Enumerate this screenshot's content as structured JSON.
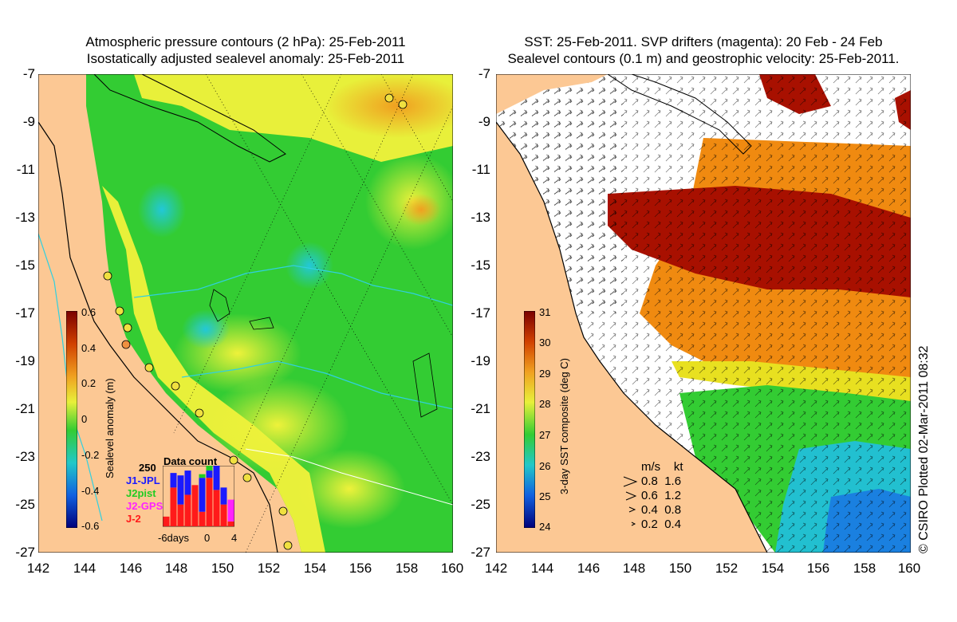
{
  "left_panel": {
    "title_line1": "Atmospheric pressure contours (2 hPa): 25-Feb-2011",
    "title_line2": "Isostatically adjusted sealevel anomaly: 25-Feb-2011",
    "y_ticks": [
      "-7",
      "-9",
      "-11",
      "-13",
      "-15",
      "-17",
      "-19",
      "-21",
      "-23",
      "-25",
      "-27"
    ],
    "x_ticks": [
      "142",
      "144",
      "146",
      "148",
      "150",
      "152",
      "154",
      "156",
      "158",
      "160"
    ],
    "colorbar": {
      "label": "Sealevel anomaly (m)",
      "ticks": [
        "0.6",
        "0.4",
        "0.2",
        "0",
        "-0.2",
        "-0.4",
        "-0.6"
      ]
    },
    "data_count": {
      "title": "Data count",
      "max_label": "250",
      "axis_labels": [
        "-6days",
        "0",
        "4"
      ],
      "legend": [
        {
          "label": "J1-JPL",
          "color": "#1a1aff"
        },
        {
          "label": "J2pist",
          "color": "#22cc22"
        },
        {
          "label": "J2-GPS",
          "color": "#ff22ff"
        },
        {
          "label": "J-2",
          "color": "#ff1a1a"
        }
      ],
      "bars": [
        {
          "red": 40,
          "blue": 0,
          "green": 0,
          "magenta": 0
        },
        {
          "red": 160,
          "blue": 60,
          "green": 0,
          "magenta": 0
        },
        {
          "red": 90,
          "blue": 120,
          "green": 0,
          "magenta": 0
        },
        {
          "red": 130,
          "blue": 100,
          "green": 0,
          "magenta": 0
        },
        {
          "red": 170,
          "blue": 0,
          "green": 0,
          "magenta": 0
        },
        {
          "red": 60,
          "blue": 140,
          "green": 15,
          "magenta": 0
        },
        {
          "red": 200,
          "blue": 30,
          "green": 20,
          "magenta": 0
        },
        {
          "red": 150,
          "blue": 100,
          "green": 0,
          "magenta": 0
        },
        {
          "red": 90,
          "blue": 70,
          "green": 0,
          "magenta": 0
        },
        {
          "red": 20,
          "blue": 0,
          "green": 0,
          "magenta": 90
        }
      ]
    }
  },
  "right_panel": {
    "title_line1": "SST: 25-Feb-2011. SVP drifters (magenta): 20 Feb - 24 Feb",
    "title_line2": "Sealevel contours (0.1 m) and geostrophic velocity: 25-Feb-2011.",
    "y_ticks": [
      "-7",
      "-9",
      "-11",
      "-13",
      "-15",
      "-17",
      "-19",
      "-21",
      "-23",
      "-25",
      "-27"
    ],
    "x_ticks": [
      "142",
      "144",
      "146",
      "148",
      "150",
      "152",
      "154",
      "156",
      "158",
      "160"
    ],
    "colorbar": {
      "label": "3-day SST composite (deg C)",
      "ticks": [
        "31",
        "30",
        "29",
        "28",
        "27",
        "26",
        "25",
        "24"
      ]
    },
    "velocity_scale": {
      "header_ms": "m/s",
      "header_kt": "kt",
      "rows": [
        {
          "ms": "0.8",
          "kt": "1.6"
        },
        {
          "ms": "0.6",
          "kt": "1.2"
        },
        {
          "ms": "0.4",
          "kt": "0.8"
        },
        {
          "ms": "0.2",
          "kt": "0.4"
        }
      ]
    }
  },
  "credit": "© CSIRO Plotted 02-Mar-2011 08:32",
  "colors": {
    "land": "#fcc894",
    "ocean_green": "#33cc33",
    "ocean_yellow": "#e8f03a",
    "ocean_orange": "#f0a020",
    "ocean_cyan": "#22c8c8",
    "sst_red": "#a81000",
    "sst_white": "#ffffff",
    "colorbar_top": "#7a0000",
    "colorbar_bottom": "#00007a"
  }
}
